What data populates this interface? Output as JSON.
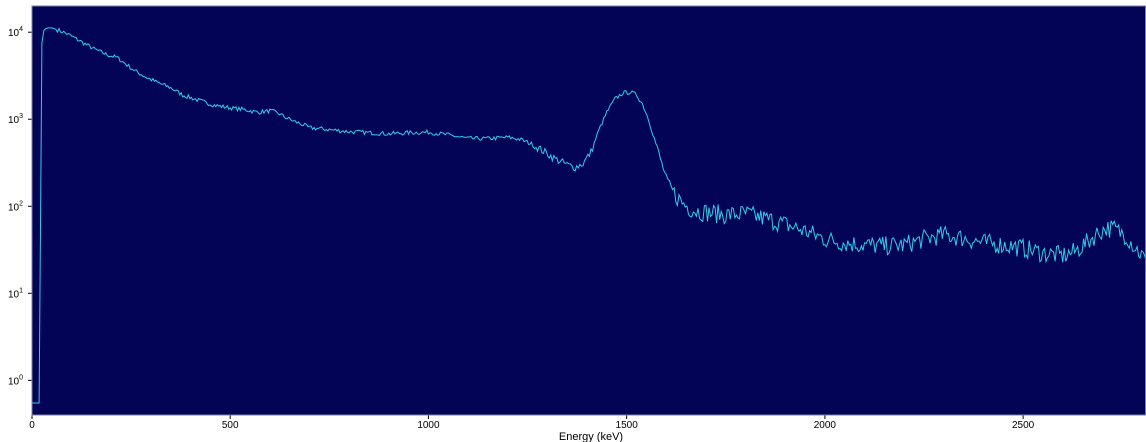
{
  "chart_data": {
    "type": "line",
    "xlabel": "Energy (keV)",
    "ylabel": "",
    "x_scale": "linear",
    "y_scale": "log",
    "xlim": [
      0,
      2810
    ],
    "ylim": [
      0.4,
      20000
    ],
    "x_ticks": [
      0,
      500,
      1000,
      1500,
      2000,
      2500
    ],
    "y_ticks": [
      {
        "base": "10",
        "exp": "0",
        "value": 1
      },
      {
        "base": "10",
        "exp": "1",
        "value": 10
      },
      {
        "base": "10",
        "exp": "2",
        "value": 100
      },
      {
        "base": "10",
        "exp": "3",
        "value": 1000
      },
      {
        "base": "10",
        "exp": "4",
        "value": 10000
      }
    ],
    "grid": false,
    "legend": "none",
    "colors": {
      "plot_background": "#030456",
      "line": "#2ccfe8",
      "frame": "#7f7f9f"
    },
    "series": [
      {
        "x": [
          0,
          15,
          18,
          22,
          25,
          30,
          35,
          40,
          50,
          60,
          80,
          100,
          130,
          160,
          190,
          215,
          240,
          260,
          290,
          320,
          350,
          380,
          420,
          460,
          500,
          540,
          570,
          600,
          620,
          640,
          660,
          680,
          700,
          750,
          800,
          850,
          900,
          950,
          1000,
          1050,
          1100,
          1150,
          1200,
          1230,
          1260,
          1290,
          1320,
          1350,
          1370,
          1390,
          1410,
          1430,
          1450,
          1470,
          1490,
          1510,
          1525,
          1540,
          1555,
          1570,
          1585,
          1600,
          1620,
          1640,
          1660,
          1680,
          1700,
          1750,
          1800,
          1850,
          1900,
          1950,
          2000,
          2050,
          2100,
          2150,
          2200,
          2250,
          2300,
          2350,
          2400,
          2450,
          2500,
          2550,
          2600,
          2630,
          2660,
          2690,
          2710,
          2730,
          2760,
          2780,
          2810
        ],
        "y": [
          0.55,
          0.55,
          0.55,
          120,
          7500,
          10500,
          11000,
          11200,
          11200,
          10800,
          10000,
          9000,
          7500,
          6300,
          5500,
          5100,
          4200,
          3600,
          3000,
          2600,
          2300,
          1900,
          1650,
          1450,
          1350,
          1280,
          1200,
          1250,
          1180,
          1050,
          950,
          880,
          800,
          760,
          720,
          700,
          680,
          700,
          710,
          660,
          600,
          600,
          620,
          590,
          520,
          430,
          350,
          300,
          280,
          310,
          420,
          750,
          1200,
          1700,
          2000,
          2050,
          1900,
          1500,
          1000,
          600,
          350,
          210,
          140,
          110,
          95,
          88,
          85,
          80,
          82,
          72,
          62,
          52,
          42,
          38,
          36,
          35,
          36,
          42,
          47,
          43,
          38,
          36,
          33,
          29,
          27,
          30,
          38,
          50,
          56,
          55,
          46,
          35,
          24
        ]
      }
    ]
  }
}
